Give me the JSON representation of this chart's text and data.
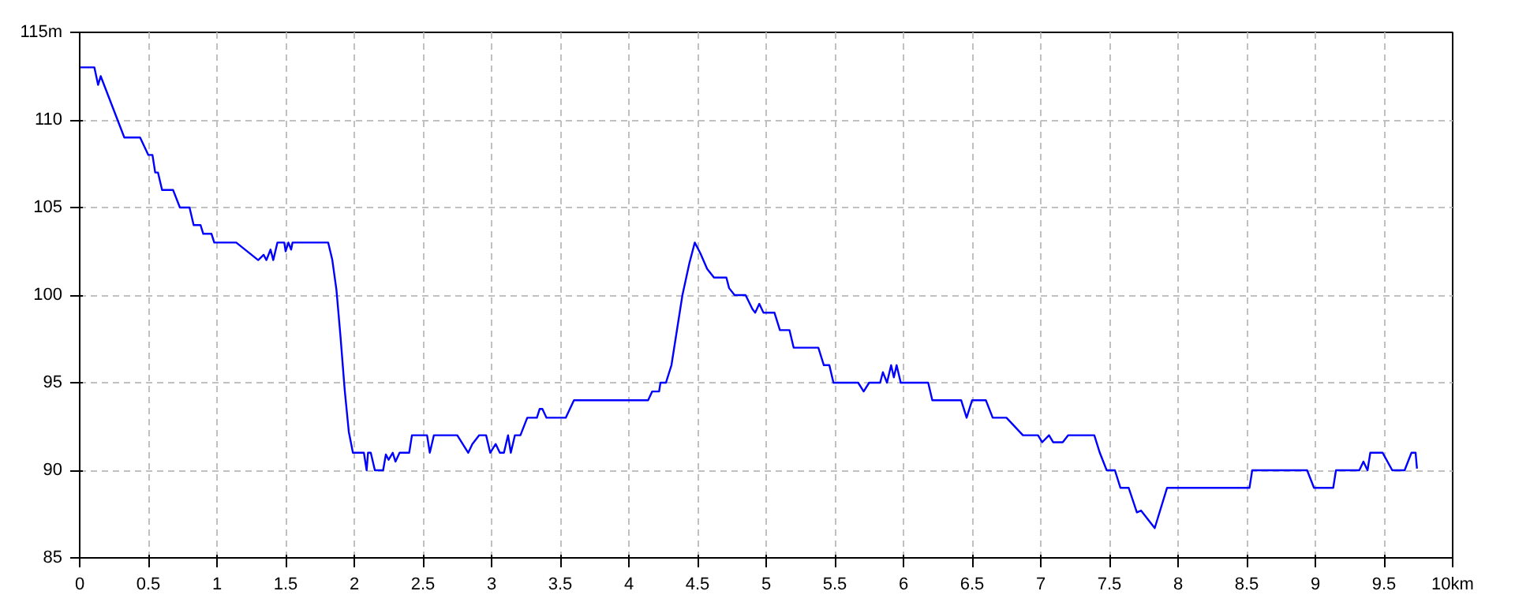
{
  "chart_data": {
    "type": "line",
    "xlim": [
      0,
      10
    ],
    "ylim": [
      85,
      115
    ],
    "xticks": [
      0,
      0.5,
      1,
      1.5,
      2,
      2.5,
      3,
      3.5,
      4,
      4.5,
      5,
      5.5,
      6,
      6.5,
      7,
      7.5,
      8,
      8.5,
      9,
      9.5,
      {
        "value": 10,
        "label": "10km"
      }
    ],
    "yticks": [
      85,
      90,
      95,
      100,
      105,
      110,
      {
        "value": 115,
        "label": "115m"
      }
    ],
    "grid": true,
    "marker": "none",
    "line_style": "solid",
    "series": [
      {
        "color": "#0000ff",
        "x": [
          0,
          0.107,
          0.134,
          0.153,
          0.325,
          0.44,
          0.5,
          0.53,
          0.55,
          0.57,
          0.6,
          0.68,
          0.73,
          0.8,
          0.83,
          0.88,
          0.9,
          0.96,
          0.98,
          1.14,
          1.3,
          1.34,
          1.36,
          1.39,
          1.41,
          1.44,
          1.49,
          1.5,
          1.52,
          1.54,
          1.55,
          1.81,
          1.84,
          1.87,
          1.9,
          1.93,
          1.96,
          1.99,
          2.07,
          2.09,
          2.1,
          2.12,
          2.15,
          2.21,
          2.23,
          2.25,
          2.28,
          2.3,
          2.33,
          2.4,
          2.42,
          2.53,
          2.55,
          2.58,
          2.75,
          2.83,
          2.86,
          2.91,
          2.96,
          2.99,
          3.03,
          3.06,
          3.09,
          3.12,
          3.14,
          3.17,
          3.21,
          3.26,
          3.33,
          3.35,
          3.37,
          3.4,
          3.54,
          3.6,
          4.14,
          4.17,
          4.22,
          4.23,
          4.27,
          4.31,
          4.34,
          4.39,
          4.44,
          4.48,
          4.52,
          4.57,
          4.62,
          4.71,
          4.73,
          4.77,
          4.85,
          4.9,
          4.92,
          4.95,
          4.98,
          5.06,
          5.1,
          5.17,
          5.2,
          5.38,
          5.42,
          5.46,
          5.49,
          5.67,
          5.71,
          5.75,
          5.83,
          5.85,
          5.88,
          5.91,
          5.93,
          5.95,
          5.98,
          6.18,
          6.21,
          6.42,
          6.46,
          6.5,
          6.6,
          6.65,
          6.75,
          6.87,
          6.98,
          7.01,
          7.06,
          7.09,
          7.16,
          7.2,
          7.39,
          7.43,
          7.48,
          7.54,
          7.58,
          7.64,
          7.7,
          7.73,
          7.83,
          7.92,
          8.52,
          8.54,
          8.94,
          8.99,
          9.13,
          9.15,
          9.32,
          9.35,
          9.38,
          9.4,
          9.49,
          9.56,
          9.65,
          9.7,
          9.73,
          9.74
        ],
        "values": [
          113,
          113,
          112,
          112.5,
          109,
          109,
          108,
          108,
          107,
          107,
          106,
          106,
          105,
          105,
          104,
          104,
          103.5,
          103.5,
          103,
          103,
          102,
          102.3,
          102,
          102.6,
          102,
          103,
          103,
          102.5,
          103,
          102.6,
          103,
          103,
          102,
          100.3,
          97.6,
          94.6,
          92.2,
          91,
          91,
          90,
          91,
          91,
          90,
          90,
          90.9,
          90.6,
          91,
          90.5,
          91,
          91,
          92,
          92,
          91,
          92,
          92,
          91,
          91.5,
          92,
          92,
          91,
          91.5,
          91,
          91,
          92,
          91,
          92,
          92,
          93,
          93,
          93.5,
          93.5,
          93,
          93,
          94,
          94,
          94.5,
          94.5,
          95,
          95,
          96,
          97.5,
          100,
          101.8,
          103,
          102.4,
          101.5,
          101,
          101,
          100.4,
          100,
          100,
          99.2,
          99,
          99.5,
          99,
          99,
          98,
          98,
          97,
          97,
          96,
          96,
          95,
          95,
          94.5,
          95,
          95,
          95.6,
          95,
          96,
          95.3,
          96,
          95,
          95,
          94,
          94,
          93,
          94,
          94,
          93,
          93,
          92,
          92,
          91.6,
          92,
          91.6,
          91.6,
          92,
          92,
          91,
          90,
          90,
          89,
          89,
          87.6,
          87.7,
          86.7,
          89,
          89,
          90,
          90,
          89,
          89,
          90,
          90,
          90.5,
          90,
          91,
          91,
          90,
          90,
          91,
          91,
          90.1
        ]
      }
    ]
  }
}
